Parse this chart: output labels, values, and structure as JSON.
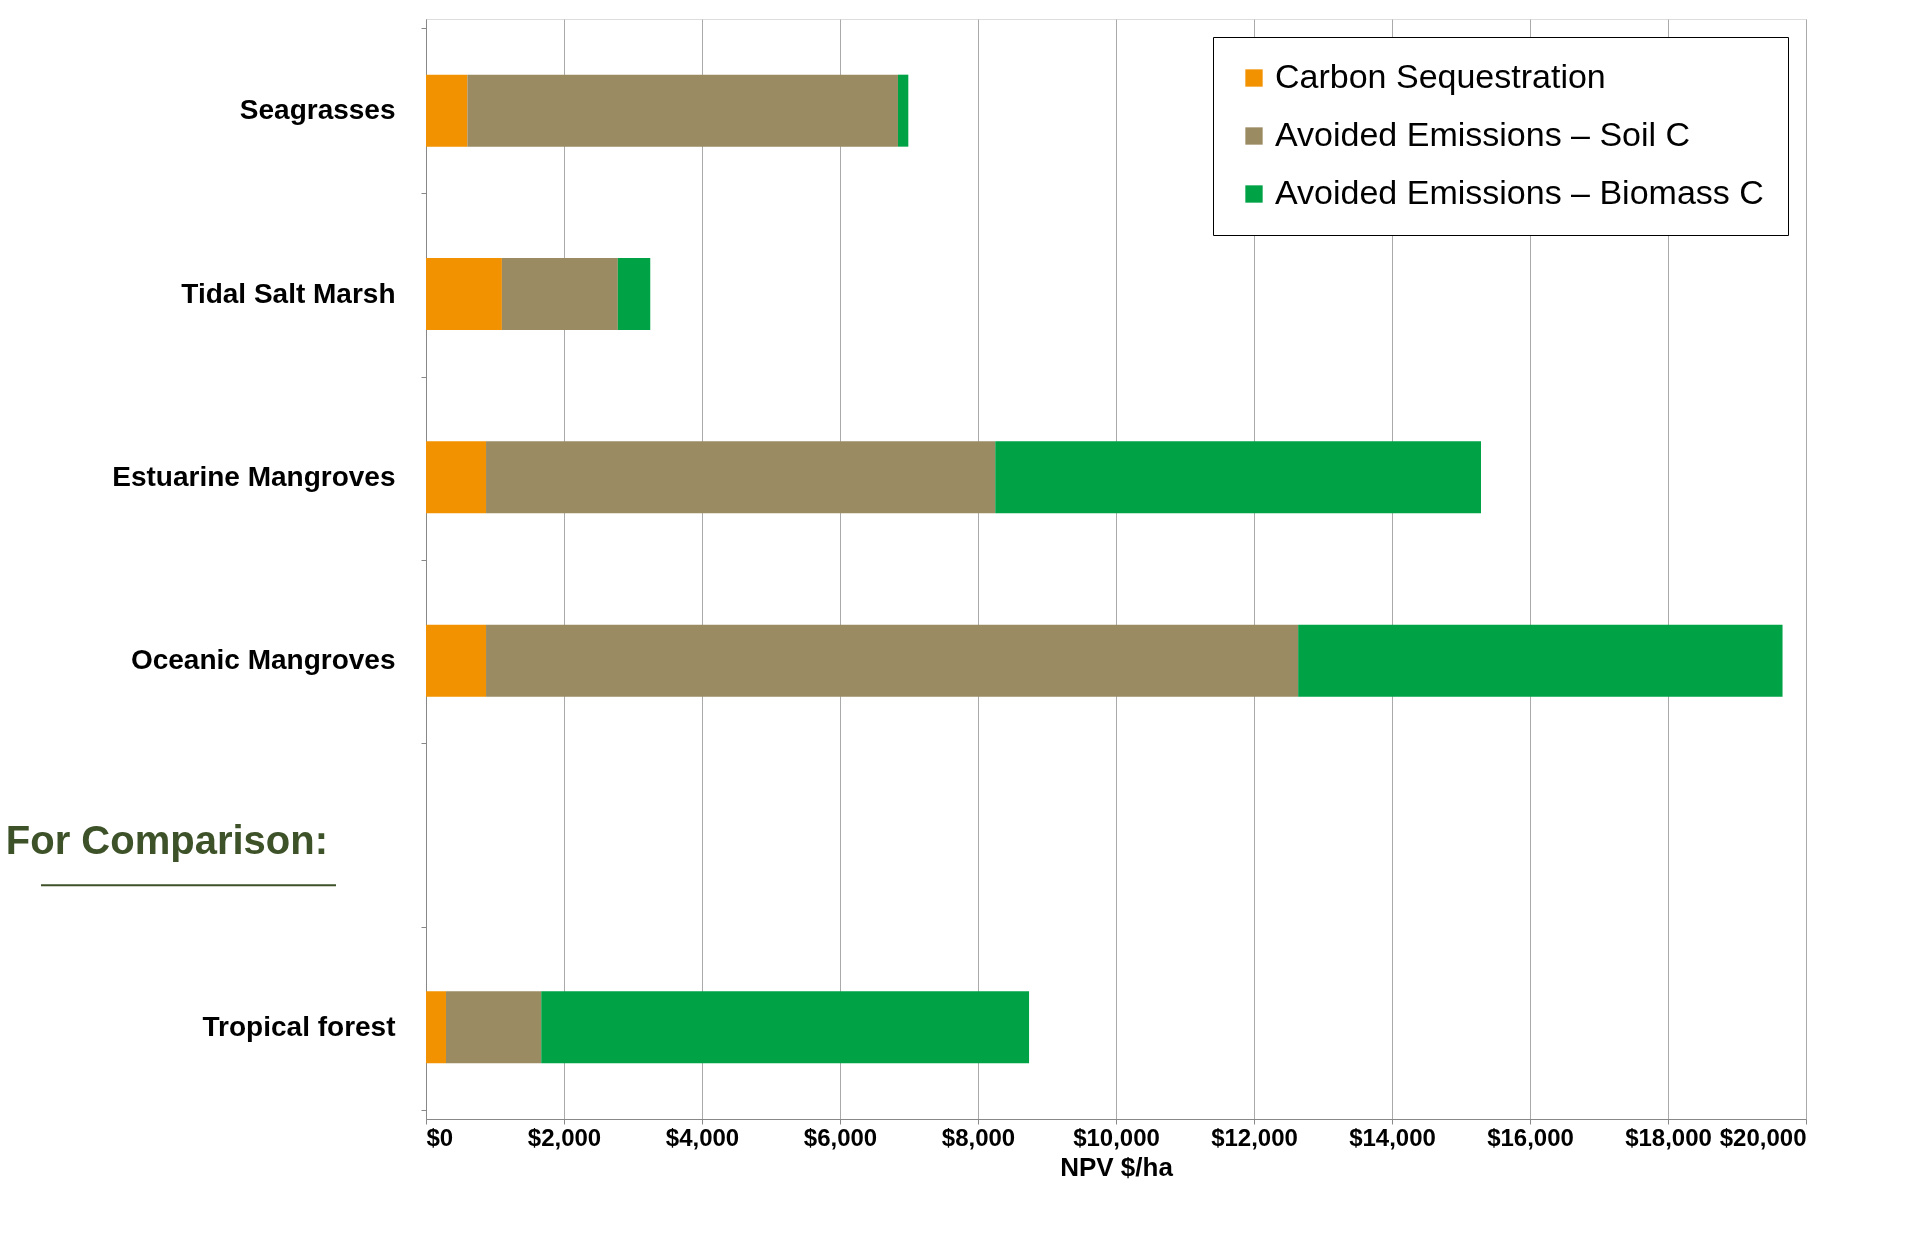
{
  "chart_data": {
    "type": "bar",
    "orientation": "horizontal",
    "stacked": true,
    "categories": [
      "Seagrasses",
      "Tidal Salt Marsh",
      "Estuarine Mangroves",
      "Oceanic Mangroves",
      null,
      "Tropical forest"
    ],
    "series": [
      {
        "name": "Carbon Sequestration",
        "color": "#f39200",
        "values": [
          600,
          1100,
          870,
          870,
          null,
          290
        ]
      },
      {
        "name": "Avoided Emissions – Soil C",
        "color": "#9b8b63",
        "values": [
          6240,
          1680,
          7380,
          11770,
          null,
          1380
        ]
      },
      {
        "name": "Avoided Emissions – Biomass C",
        "color": "#00a246",
        "values": [
          150,
          470,
          7040,
          7020,
          null,
          7070
        ]
      }
    ],
    "xlabel": "NPV $/ha",
    "xlim": [
      0,
      20000
    ],
    "xticks": [
      {
        "value": 0,
        "label": "$0"
      },
      {
        "value": 2000,
        "label": "$2,000"
      },
      {
        "value": 4000,
        "label": "$4,000"
      },
      {
        "value": 6000,
        "label": "$6,000"
      },
      {
        "value": 8000,
        "label": "$8,000"
      },
      {
        "value": 10000,
        "label": "$10,000"
      },
      {
        "value": 12000,
        "label": "$12,000"
      },
      {
        "value": 14000,
        "label": "$14,000"
      },
      {
        "value": 16000,
        "label": "$16,000"
      },
      {
        "value": 18000,
        "label": "$18,000"
      },
      {
        "value": 20000,
        "label": "$20,000"
      }
    ],
    "grid": "x",
    "legend": "top right",
    "annotations": [
      "For Comparison:"
    ]
  }
}
